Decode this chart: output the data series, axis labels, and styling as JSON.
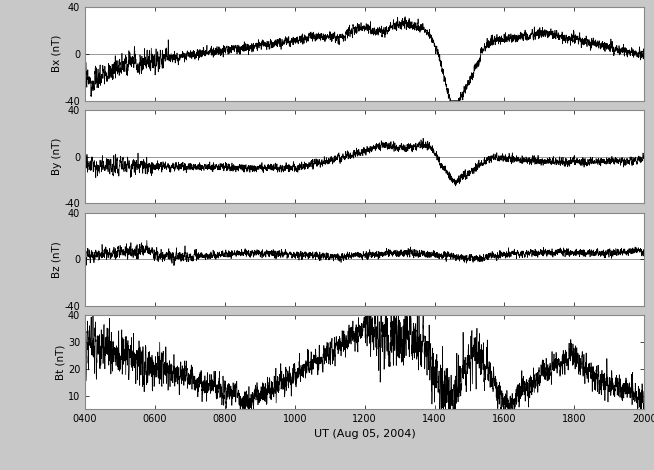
{
  "title": "",
  "xlabel": "UT (Aug 05, 2004)",
  "panels": [
    "Bx (nT)",
    "By (nT)",
    "Bz (nT)",
    "Bt (nT)"
  ],
  "xlim": [
    400,
    2000
  ],
  "xticks": [
    400,
    600,
    800,
    1000,
    1200,
    1400,
    1600,
    1800,
    2000
  ],
  "xticklabels": [
    "0400",
    "0600",
    "0800",
    "1000",
    "1200",
    "1400",
    "1600",
    "1800",
    "2000"
  ],
  "ylim_bxyz": [
    -40,
    40
  ],
  "yticks_bxyz": [
    -40,
    0,
    40
  ],
  "ylim_bt": [
    5,
    40
  ],
  "yticks_bt": [
    10,
    20,
    30,
    40
  ],
  "line_color": "#000000",
  "line_width": 0.5,
  "background_color": "#c8c8c8",
  "panel_face_color": "#ffffff",
  "seed": 42
}
